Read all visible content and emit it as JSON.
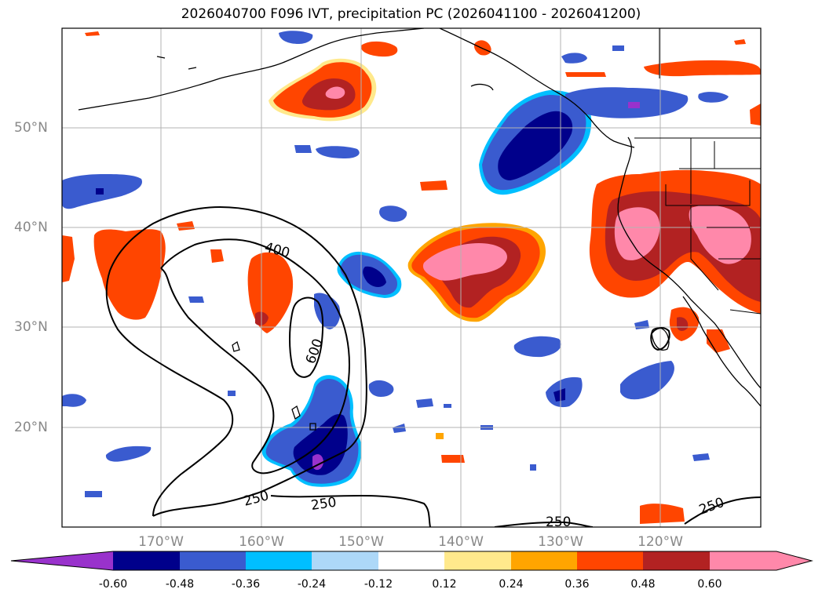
{
  "title": "2026040700 F096 IVT, precipitation PC (2026041100 - 2026041200)",
  "lat_labels": [
    "50°N",
    "40°N",
    "30°N",
    "20°N"
  ],
  "lon_labels": [
    "170°W",
    "160°W",
    "150°W",
    "140°W",
    "130°W",
    "120°W"
  ],
  "contour_labels": [
    "400",
    "600",
    "250",
    "250",
    "250",
    "250"
  ],
  "colorbar": {
    "ticks": [
      "-0.60",
      "-0.48",
      "-0.36",
      "-0.24",
      "-0.12",
      "0.12",
      "0.24",
      "0.36",
      "0.48",
      "0.60"
    ],
    "colors": [
      "#9932cc",
      "#00008b",
      "#3a5bcf",
      "#00bfff",
      "#add8f8",
      "#ffffff",
      "#ffe98c",
      "#ffa500",
      "#ff4500",
      "#b22222",
      "#ff88aa"
    ]
  },
  "map": {
    "lat_range": [
      10,
      60
    ],
    "lon_range": [
      -180,
      -110
    ],
    "ivt_contour_levels": [
      250,
      400,
      600
    ]
  }
}
